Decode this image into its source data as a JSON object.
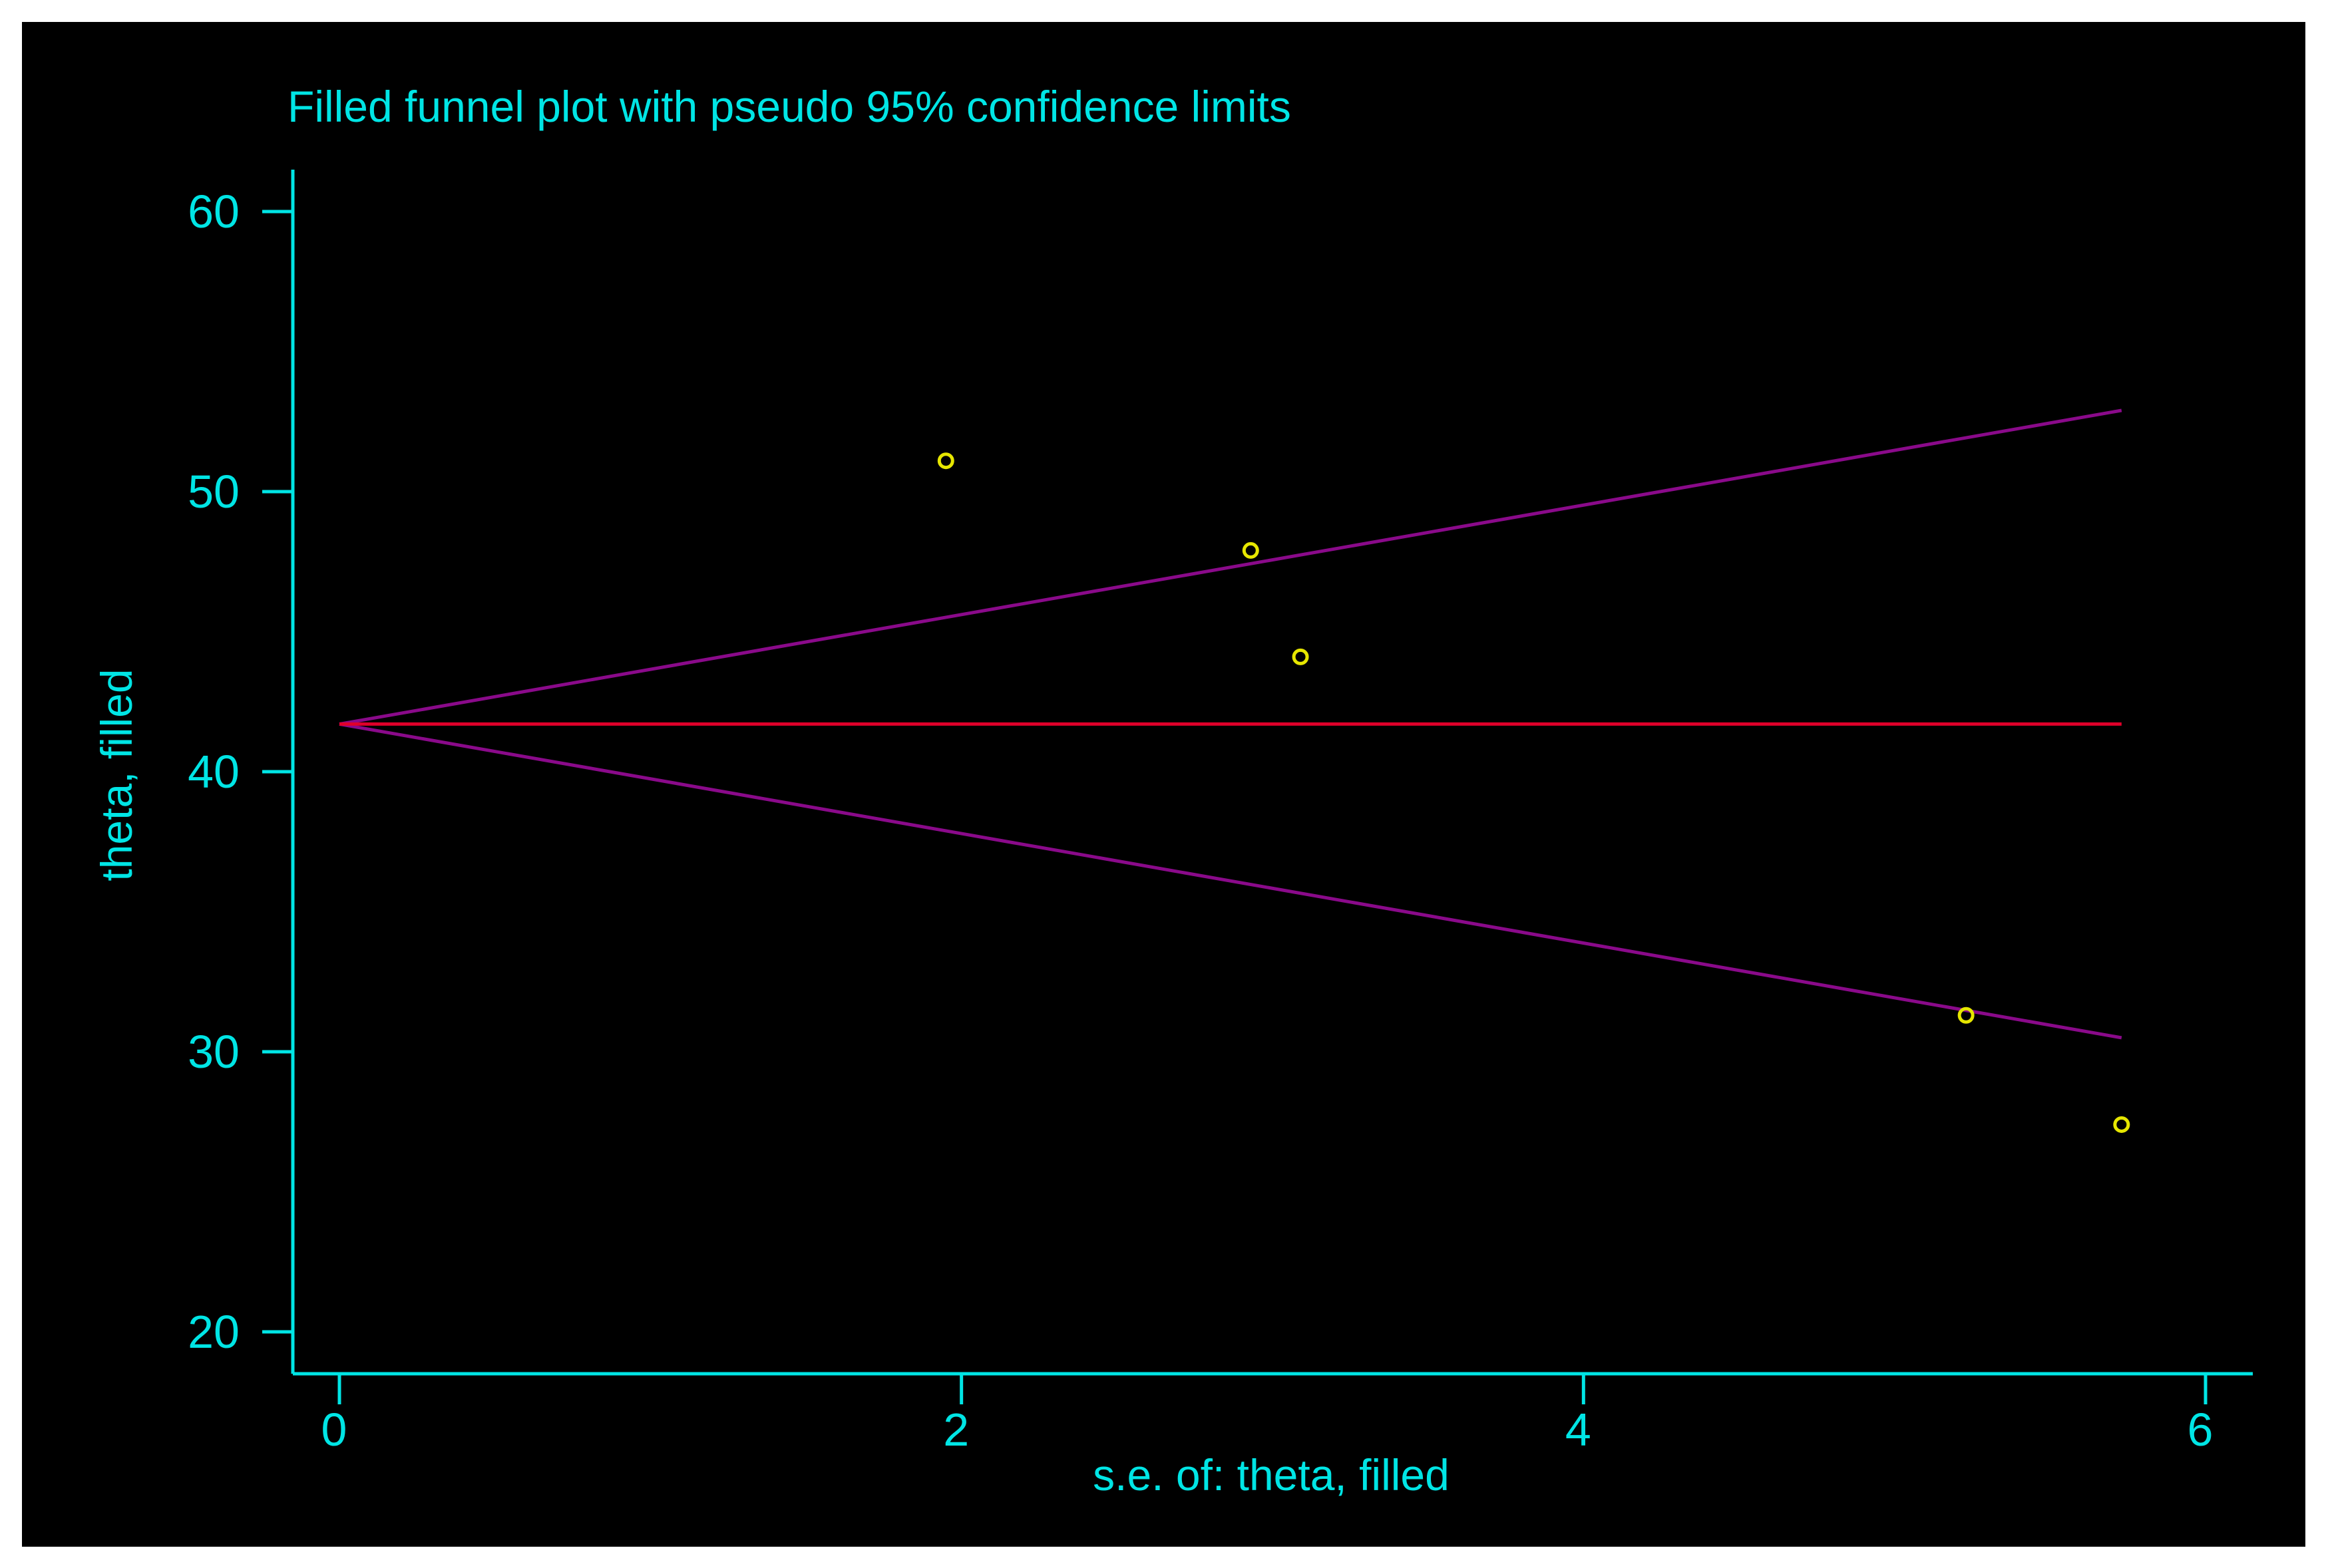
{
  "chart_data": {
    "type": "scatter",
    "title": "Filled funnel plot with pseudo 95% confidence limits",
    "xlabel": "s.e. of: theta, filled",
    "ylabel": "theta, filled",
    "xlim": [
      0,
      6
    ],
    "ylim": [
      20,
      60
    ],
    "xticks": [
      0,
      2,
      4,
      6
    ],
    "yticks": [
      20,
      30,
      40,
      50,
      60
    ],
    "grid": false,
    "points": [
      {
        "x": 1.95,
        "y": 51.1
      },
      {
        "x": 2.93,
        "y": 47.9
      },
      {
        "x": 3.09,
        "y": 44.1
      },
      {
        "x": 5.23,
        "y": 31.3
      },
      {
        "x": 5.73,
        "y": 27.4
      }
    ],
    "pooled_estimate": 41.7,
    "confidence_limits": {
      "x_end": 5.73,
      "upper_end": 52.9,
      "lower_end": 30.5
    },
    "colors": {
      "background": "#000000",
      "axes": "#00e5e5",
      "text": "#00e5e5",
      "points": "#e6e600",
      "pooled_line": "#e0002a",
      "ci_lines": "#8a0a8a"
    }
  }
}
